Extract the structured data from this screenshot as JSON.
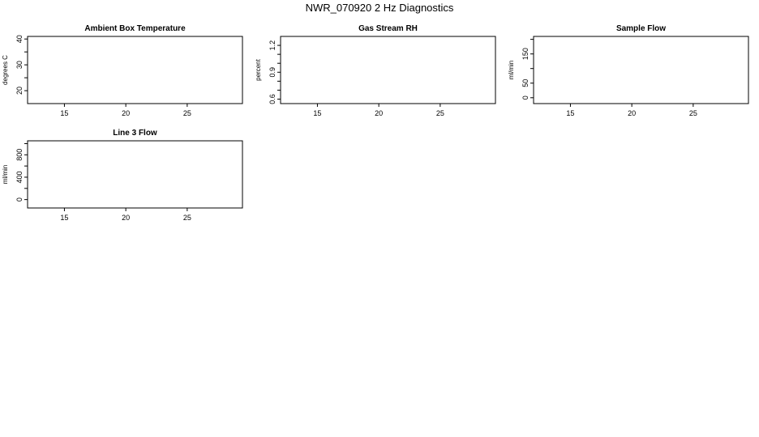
{
  "page": {
    "title": "NWR_070920  2 Hz Diagnostics"
  },
  "chart_data": [
    {
      "type": "line",
      "title": "Ambient Box Temperature",
      "xlabel": "",
      "ylabel": "degrees C",
      "xlim": [
        12,
        29.5
      ],
      "ylim": [
        15,
        41
      ],
      "xticks": [
        15,
        20,
        25
      ],
      "xtick_labels": [
        "15",
        "20",
        "25"
      ],
      "yticks": [
        20,
        25,
        30,
        35,
        40
      ],
      "ytick_labels": [
        "20",
        "",
        "30",
        "",
        "40"
      ],
      "series": []
    },
    {
      "type": "line",
      "title": "Gas Stream RH",
      "xlabel": "",
      "ylabel": "percent",
      "xlim": [
        12,
        29.5
      ],
      "ylim": [
        0.55,
        1.3
      ],
      "xticks": [
        15,
        20,
        25
      ],
      "xtick_labels": [
        "15",
        "20",
        "25"
      ],
      "yticks": [
        0.6,
        0.7,
        0.8,
        0.9,
        1.0,
        1.1,
        1.2
      ],
      "ytick_labels": [
        "0.6",
        "",
        "",
        "0.9",
        "",
        "",
        "1.2"
      ],
      "series": []
    },
    {
      "type": "line",
      "title": "Sample Flow",
      "xlabel": "",
      "ylabel": "ml/min",
      "xlim": [
        12,
        29.5
      ],
      "ylim": [
        -20,
        210
      ],
      "xticks": [
        15,
        20,
        25
      ],
      "xtick_labels": [
        "15",
        "20",
        "25"
      ],
      "yticks": [
        0,
        50,
        100,
        150,
        200
      ],
      "ytick_labels": [
        "0",
        "50",
        "",
        "150",
        ""
      ],
      "series": []
    },
    {
      "type": "line",
      "title": "Line 3 Flow",
      "xlabel": "",
      "ylabel": "ml/min",
      "xlim": [
        12,
        29.5
      ],
      "ylim": [
        -150,
        1050
      ],
      "xticks": [
        15,
        20,
        25
      ],
      "xtick_labels": [
        "15",
        "20",
        "25"
      ],
      "yticks": [
        0,
        200,
        400,
        600,
        800,
        1000
      ],
      "ytick_labels": [
        "0",
        "",
        "400",
        "",
        "800",
        ""
      ],
      "series": []
    }
  ]
}
